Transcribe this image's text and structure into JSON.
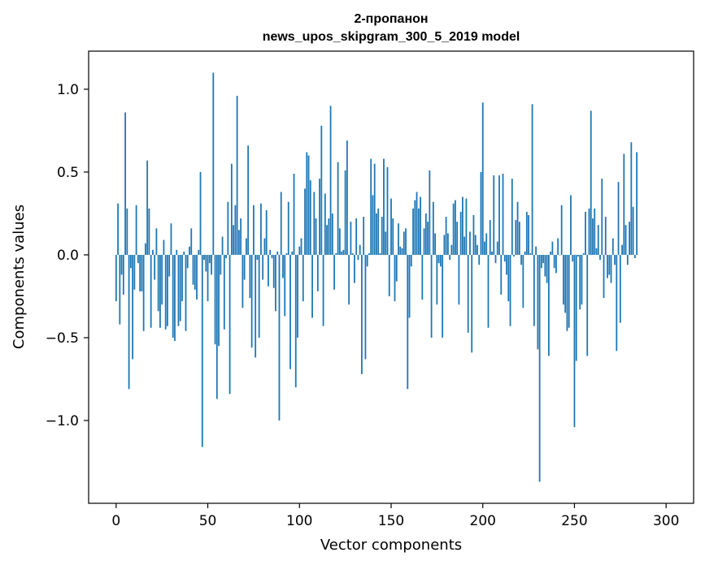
{
  "chart_data": {
    "type": "bar",
    "title": "2-пропанон",
    "subtitle": "news_upos_skipgram_300_5_2019 model",
    "xlabel": "Vector components",
    "ylabel": "Components values",
    "xlim": [
      -15,
      315
    ],
    "ylim": [
      -1.5,
      1.23
    ],
    "xticks": [
      0,
      50,
      100,
      150,
      200,
      250,
      300
    ],
    "xtick_labels": [
      "0",
      "50",
      "100",
      "150",
      "200",
      "250",
      "300"
    ],
    "yticks": [
      -1.0,
      -0.5,
      0.0,
      0.5,
      1.0
    ],
    "ytick_labels": [
      "−1.0",
      "−0.5",
      "0.0",
      "0.5",
      "1.0"
    ],
    "grid": false,
    "bar_color": "#1f77b4",
    "values": [
      -0.28,
      0.31,
      -0.42,
      -0.12,
      -0.24,
      0.86,
      0.28,
      -0.81,
      -0.08,
      -0.63,
      -0.21,
      0.3,
      -0.05,
      -0.22,
      -0.22,
      -0.46,
      0.07,
      0.57,
      0.28,
      -0.44,
      0.03,
      -0.15,
      0.16,
      -0.34,
      -0.44,
      -0.3,
      0.09,
      -0.45,
      -0.43,
      -0.13,
      0.19,
      -0.5,
      -0.52,
      0.03,
      -0.43,
      -0.4,
      -0.28,
      0.02,
      -0.46,
      -0.08,
      0.05,
      0.16,
      -0.18,
      -0.21,
      -0.27,
      0.03,
      0.5,
      -1.16,
      -0.03,
      -0.1,
      -0.28,
      -0.05,
      -0.12,
      1.1,
      -0.54,
      -0.87,
      -0.55,
      -0.12,
      0.11,
      -0.45,
      -0.02,
      0.32,
      -0.84,
      0.55,
      0.18,
      0.3,
      0.96,
      0.15,
      0.22,
      -0.32,
      -0.15,
      0.1,
      0.66,
      -0.26,
      -0.56,
      0.3,
      -0.62,
      -0.03,
      -0.5,
      0.31,
      -0.15,
      0.1,
      0.27,
      -0.19,
      0.03,
      -0.02,
      -0.2,
      -0.34,
      0.02,
      -1.0,
      0.38,
      -0.14,
      -0.37,
      0.01,
      0.32,
      -0.69,
      0.02,
      0.49,
      -0.8,
      -0.5,
      0.05,
      0.1,
      -0.28,
      0.4,
      0.62,
      0.6,
      0.45,
      -0.38,
      0.38,
      0.22,
      -0.22,
      0.46,
      0.78,
      -0.43,
      0.37,
      0.18,
      0.22,
      0.9,
      0.25,
      -0.21,
      0.01,
      0.56,
      0.16,
      0.02,
      0.03,
      0.51,
      0.69,
      -0.3,
      0.2,
      0.01,
      -0.17,
      0.22,
      -0.03,
      0.06,
      -0.72,
      0.23,
      -0.63,
      -0.07,
      0.01,
      0.58,
      0.36,
      0.55,
      0.25,
      0.28,
      0.01,
      0.23,
      0.58,
      0.14,
      0.53,
      -0.25,
      0.34,
      0.22,
      -0.28,
      -0.16,
      0.19,
      0.05,
      0.04,
      0.14,
      0.16,
      -0.81,
      -0.38,
      -0.07,
      0.28,
      0.33,
      0.38,
      0.28,
      0.35,
      -0.27,
      0.16,
      0.25,
      0.2,
      0.51,
      -0.5,
      0.32,
      0.13,
      -0.3,
      -0.05,
      -0.07,
      -0.5,
      0.12,
      0.23,
      0.13,
      -0.03,
      0.06,
      0.31,
      0.33,
      0.2,
      -0.3,
      0.26,
      0.35,
      0.11,
      0.34,
      -0.47,
      0.14,
      -0.59,
      0.24,
      0.12,
      0.06,
      -0.06,
      0.5,
      0.92,
      0.08,
      0.13,
      -0.44,
      0.21,
      0.02,
      0.48,
      -0.05,
      0.08,
      0.48,
      -0.24,
      0.49,
      -0.04,
      -0.12,
      -0.28,
      -0.43,
      0.46,
      -0.01,
      0.21,
      0.32,
      0.2,
      -0.06,
      -0.32,
      0.02,
      0.26,
      0.24,
      0.01,
      0.91,
      -0.43,
      0.05,
      -0.57,
      -1.37,
      -0.08,
      -0.05,
      -0.13,
      -0.17,
      -0.61,
      0.02,
      0.08,
      -0.08,
      -0.11,
      0.1,
      0.0,
      0.3,
      -0.3,
      -0.35,
      -0.46,
      -0.44,
      0.36,
      -0.04,
      -1.04,
      -0.64,
      -0.01,
      -0.33,
      -0.3,
      0.01,
      0.26,
      -0.61,
      0.28,
      0.87,
      0.22,
      0.28,
      0.04,
      0.18,
      -0.03,
      0.46,
      -0.26,
      0.23,
      -0.14,
      -0.12,
      -0.17,
      0.1,
      -0.06,
      -0.58,
      0.44,
      -0.41,
      0.06,
      0.61,
      0.18,
      -0.06,
      0.2,
      0.68,
      0.29,
      -0.02,
      0.62
    ]
  }
}
